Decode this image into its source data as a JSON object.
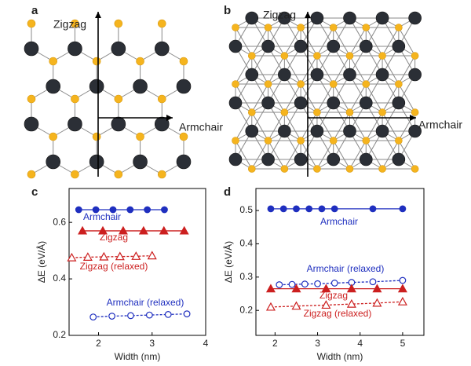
{
  "panels": [
    {
      "label": "a",
      "vertical_axis": "Zigzag",
      "horizontal_axis": "Armchair"
    },
    {
      "label": "b",
      "vertical_axis": "Zigzag",
      "horizontal_axis": "Armchair"
    }
  ],
  "chart_data": [
    {
      "type": "line",
      "panel_label": "c",
      "xlabel": "Width (nm)",
      "ylabel": "ΔE (eV/Å)",
      "xlim": [
        1.45,
        4.0
      ],
      "xticks": [
        2,
        3,
        4
      ],
      "ylim": [
        0.2,
        0.72
      ],
      "yticks": [
        0.2,
        0.4,
        0.6
      ],
      "series": [
        {
          "name": "Armchair",
          "color": "#1f2fbf",
          "marker": "circle",
          "filled": true,
          "dashed": false,
          "x": [
            1.63,
            1.95,
            2.27,
            2.59,
            2.91,
            3.23
          ],
          "values": [
            0.645,
            0.645,
            0.645,
            0.645,
            0.645,
            0.645
          ]
        },
        {
          "name": "Zigzag",
          "color": "#cc1f1f",
          "marker": "triangle",
          "filled": true,
          "dashed": false,
          "x": [
            1.7,
            2.08,
            2.46,
            2.84,
            3.22,
            3.6
          ],
          "values": [
            0.57,
            0.57,
            0.57,
            0.57,
            0.57,
            0.57
          ]
        },
        {
          "name": "Zigzag (relaxed)",
          "color": "#cc1f1f",
          "marker": "triangle",
          "filled": false,
          "dashed": true,
          "x": [
            1.5,
            1.8,
            2.1,
            2.4,
            2.7,
            3.0
          ],
          "values": [
            0.475,
            0.477,
            0.478,
            0.479,
            0.48,
            0.482
          ]
        },
        {
          "name": "Armchair (relaxed)",
          "color": "#1f2fbf",
          "marker": "circle",
          "filled": false,
          "dashed": true,
          "x": [
            1.9,
            2.25,
            2.6,
            2.95,
            3.3,
            3.65
          ],
          "values": [
            0.265,
            0.268,
            0.27,
            0.272,
            0.274,
            0.276
          ]
        }
      ]
    },
    {
      "type": "line",
      "panel_label": "d",
      "xlabel": "Width (nm)",
      "ylabel": "ΔE (eV/Å)",
      "xlim": [
        1.55,
        5.5
      ],
      "xticks": [
        2,
        3,
        4,
        5
      ],
      "ylim": [
        0.125,
        0.566
      ],
      "yticks": [
        0.2,
        0.3,
        0.4,
        0.5
      ],
      "series": [
        {
          "name": "Armchair",
          "color": "#1f2fbf",
          "marker": "circle",
          "filled": true,
          "dashed": false,
          "x": [
            1.9,
            2.2,
            2.5,
            2.8,
            3.1,
            3.4,
            4.3,
            5.0
          ],
          "values": [
            0.505,
            0.505,
            0.505,
            0.505,
            0.505,
            0.505,
            0.505,
            0.505
          ]
        },
        {
          "name": "Armchair (relaxed)",
          "color": "#1f2fbf",
          "marker": "circle",
          "filled": false,
          "dashed": true,
          "x": [
            2.1,
            2.4,
            2.7,
            3.0,
            3.4,
            3.8,
            4.3,
            5.0
          ],
          "values": [
            0.277,
            0.278,
            0.279,
            0.28,
            0.282,
            0.284,
            0.286,
            0.29
          ]
        },
        {
          "name": "Zigzag",
          "color": "#cc1f1f",
          "marker": "triangle",
          "filled": true,
          "dashed": false,
          "x": [
            1.9,
            2.5,
            3.2,
            3.8,
            4.4,
            5.0
          ],
          "values": [
            0.265,
            0.265,
            0.265,
            0.265,
            0.265,
            0.265
          ]
        },
        {
          "name": "Zigzag (relaxed)",
          "color": "#cc1f1f",
          "marker": "triangle",
          "filled": false,
          "dashed": true,
          "x": [
            1.9,
            2.5,
            3.2,
            3.8,
            4.4,
            5.0
          ],
          "values": [
            0.21,
            0.213,
            0.216,
            0.219,
            0.222,
            0.226
          ]
        }
      ]
    }
  ]
}
